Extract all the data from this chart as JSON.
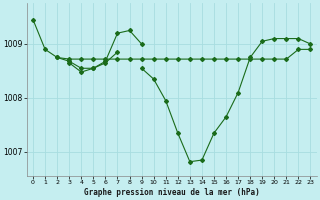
{
  "background_color": "#c5eef0",
  "grid_color": "#a8dde0",
  "line_color": "#1a6b1a",
  "title": "Graphe pression niveau de la mer (hPa)",
  "xlim": [
    -0.5,
    23.5
  ],
  "ylim": [
    1006.55,
    1009.75
  ],
  "yticks": [
    1007,
    1008,
    1009
  ],
  "xticks": [
    0,
    1,
    2,
    3,
    4,
    5,
    6,
    7,
    8,
    9,
    10,
    11,
    12,
    13,
    14,
    15,
    16,
    17,
    18,
    19,
    20,
    21,
    22,
    23
  ],
  "series": [
    {
      "x": [
        0,
        1,
        2,
        3,
        4,
        5,
        6,
        7,
        8,
        9,
        10,
        11,
        12,
        13,
        14,
        15,
        16,
        17,
        18,
        19,
        20,
        21,
        22,
        23
      ],
      "y": [
        1009.45,
        1008.9,
        1008.75,
        1008.72,
        1008.72,
        1008.72,
        1008.72,
        1008.72,
        1008.72,
        1008.72,
        1008.72,
        1008.72,
        1008.72,
        1008.72,
        1008.72,
        1008.72,
        1008.72,
        1008.72,
        1008.72,
        1008.72,
        1008.72,
        1008.72,
        1008.9,
        1008.9
      ]
    },
    {
      "x": [
        2,
        3,
        4,
        5,
        6,
        7,
        8,
        9
      ],
      "y": [
        1008.75,
        1008.68,
        1008.55,
        1008.55,
        1008.68,
        1009.2,
        1009.25,
        1009.0
      ]
    },
    {
      "x": [
        3,
        4,
        5,
        6,
        7
      ],
      "y": [
        1008.65,
        1008.48,
        1008.55,
        1008.65,
        1008.85
      ]
    },
    {
      "x": [
        9,
        10,
        11,
        12,
        13,
        14,
        15,
        16,
        17,
        18,
        19,
        20,
        21,
        22,
        23
      ],
      "y": [
        1008.55,
        1008.35,
        1007.95,
        1007.35,
        1006.82,
        1006.85,
        1007.35,
        1007.65,
        1008.1,
        1008.75,
        1009.05,
        1009.1,
        1009.1,
        1009.1,
        1009.0
      ]
    }
  ]
}
